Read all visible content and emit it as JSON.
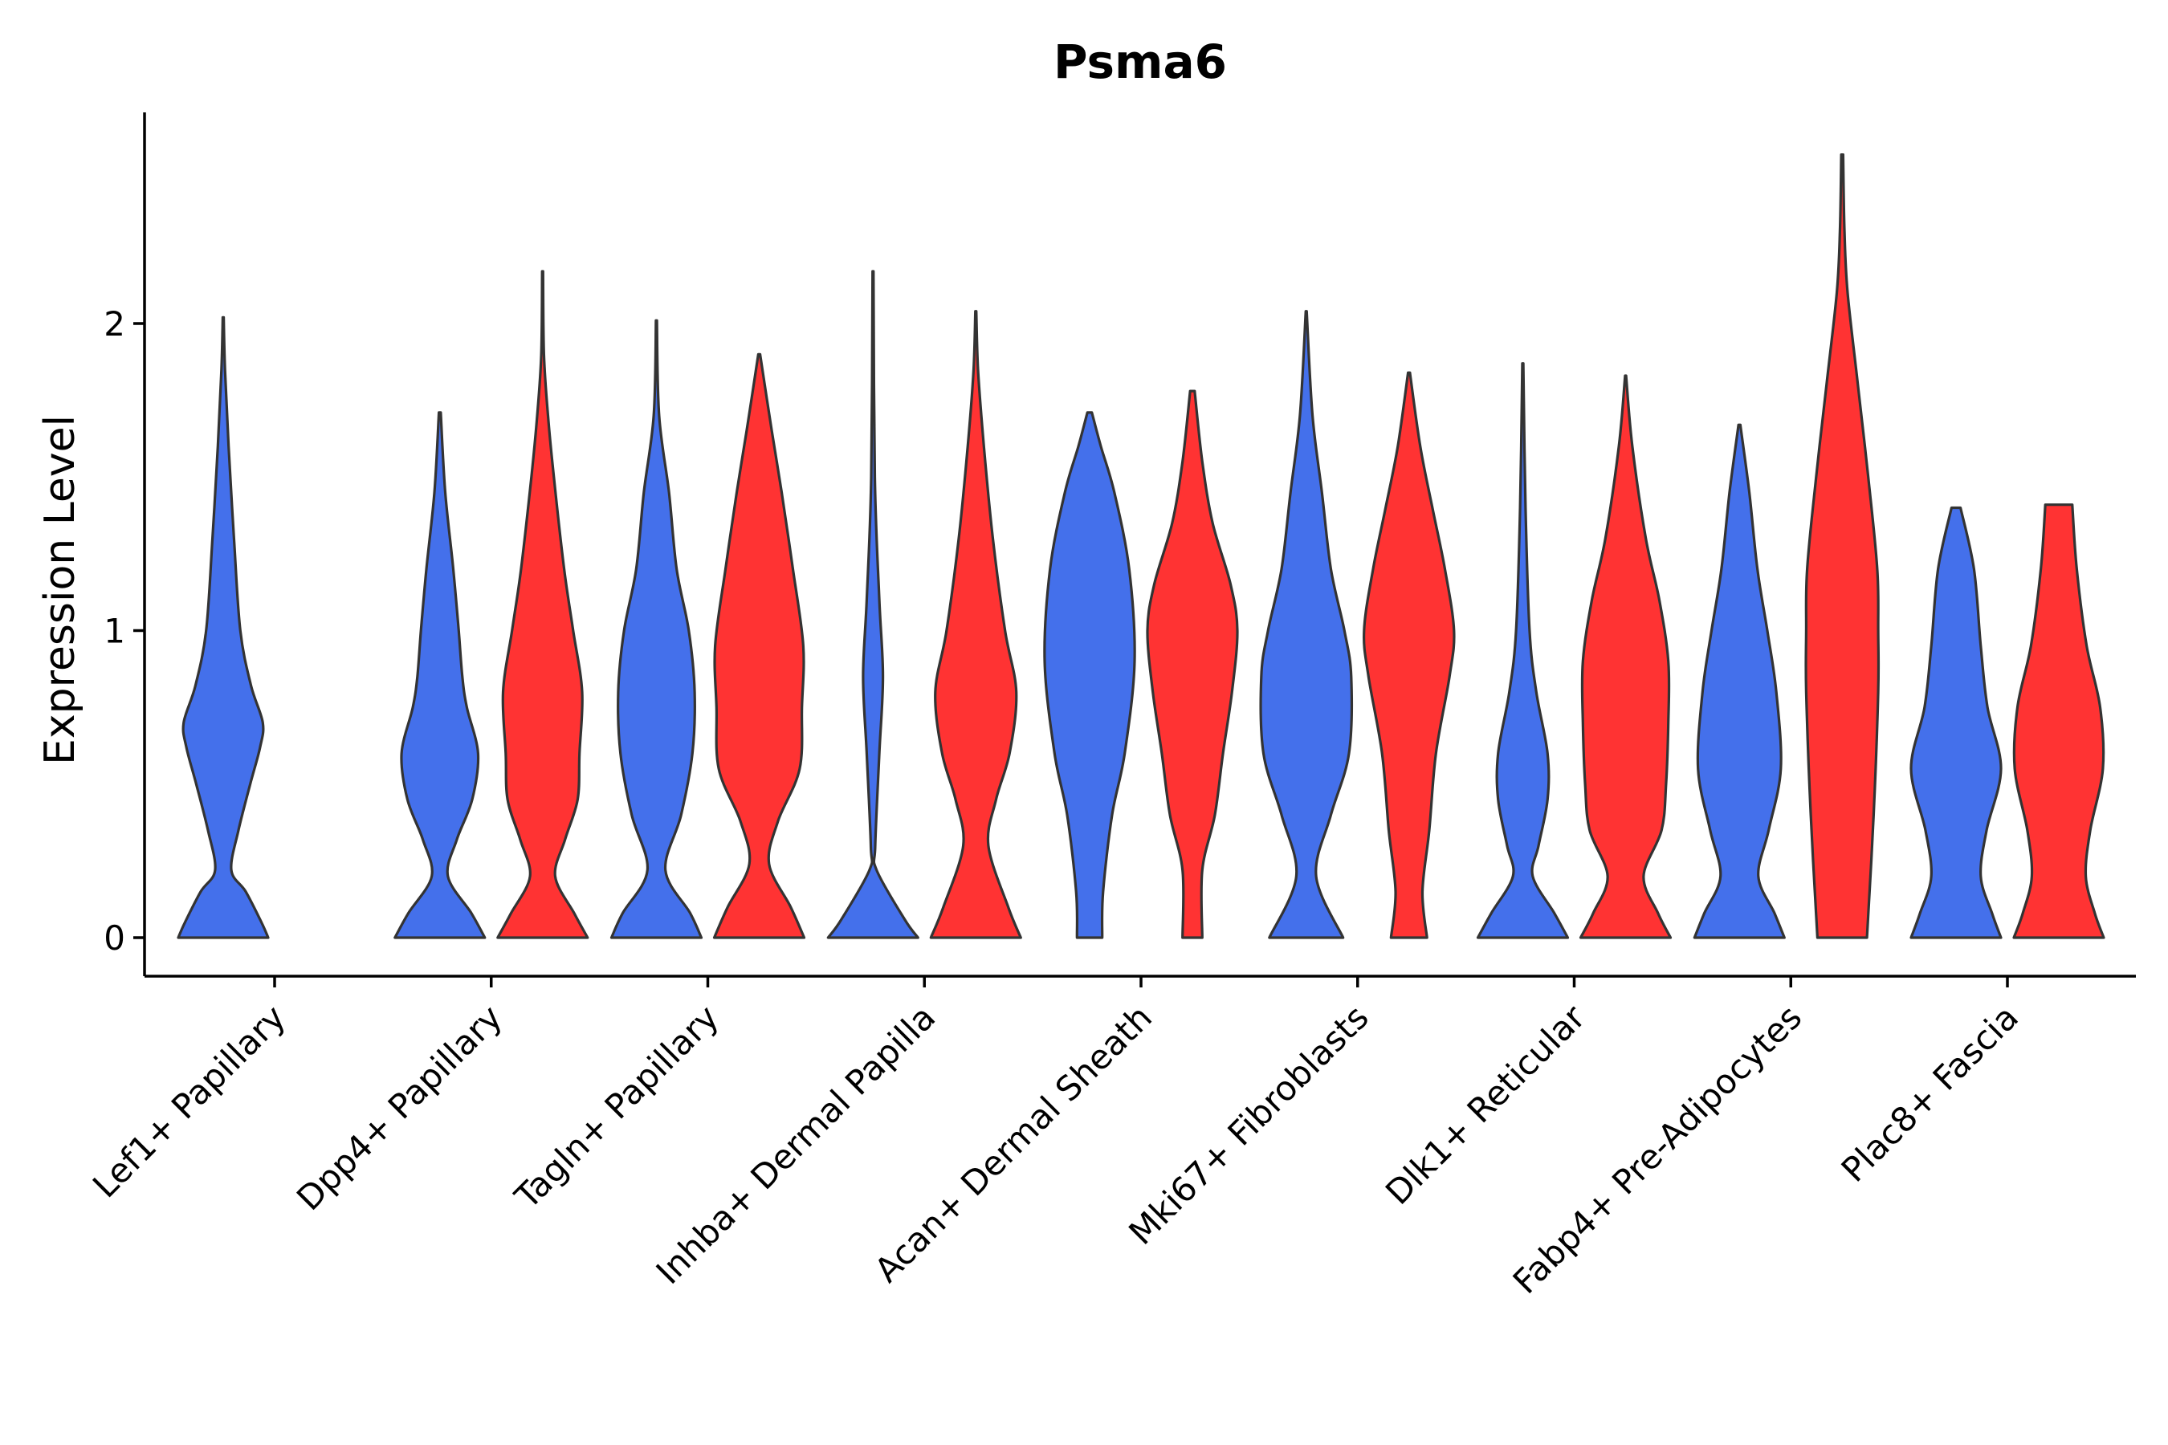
{
  "chart_data": {
    "type": "violin",
    "title": "Psma6",
    "xlabel": "",
    "ylabel": "Expression Level",
    "ylim": [
      -0.13,
      2.7
    ],
    "yticks": [
      0,
      1,
      2
    ],
    "colors": {
      "group_a": "#4470EB",
      "group_b": "#FF3333",
      "outline": "#333333"
    },
    "categories": [
      "Lef1+ Papillary",
      "Dpp4+ Papillary",
      "Tagln+ Papillary",
      "Inhba+ Dermal Papilla",
      "Acan+ Dermal Sheath",
      "Mki67+ Fibroblasts",
      "Dlk1+ Reticular",
      "Fabp4+ Pre-Adipocytes",
      "Plac8+ Fascia"
    ],
    "violins": [
      {
        "category": 0,
        "group": "a",
        "ymax": 2.02,
        "profile": [
          [
            0,
            1.0
          ],
          [
            0.05,
            0.85
          ],
          [
            0.15,
            0.5
          ],
          [
            0.22,
            0.18
          ],
          [
            0.35,
            0.34
          ],
          [
            0.5,
            0.6
          ],
          [
            0.62,
            0.82
          ],
          [
            0.7,
            0.88
          ],
          [
            0.82,
            0.62
          ],
          [
            1.0,
            0.38
          ],
          [
            1.3,
            0.24
          ],
          [
            1.6,
            0.12
          ],
          [
            1.85,
            0.04
          ],
          [
            2.02,
            0.01
          ]
        ]
      },
      {
        "category": 1,
        "group": "a",
        "ymax": 1.71,
        "profile": [
          [
            0,
            1.0
          ],
          [
            0.08,
            0.7
          ],
          [
            0.2,
            0.18
          ],
          [
            0.32,
            0.38
          ],
          [
            0.45,
            0.72
          ],
          [
            0.6,
            0.85
          ],
          [
            0.75,
            0.6
          ],
          [
            0.85,
            0.5
          ],
          [
            1.0,
            0.42
          ],
          [
            1.2,
            0.3
          ],
          [
            1.45,
            0.12
          ],
          [
            1.71,
            0.02
          ]
        ]
      },
      {
        "category": 1,
        "group": "b",
        "ymax": 2.17,
        "profile": [
          [
            0,
            1.0
          ],
          [
            0.08,
            0.7
          ],
          [
            0.2,
            0.28
          ],
          [
            0.32,
            0.5
          ],
          [
            0.45,
            0.78
          ],
          [
            0.6,
            0.82
          ],
          [
            0.8,
            0.88
          ],
          [
            1.0,
            0.68
          ],
          [
            1.2,
            0.48
          ],
          [
            1.5,
            0.25
          ],
          [
            1.7,
            0.12
          ],
          [
            1.9,
            0.03
          ],
          [
            2.17,
            0.01
          ]
        ]
      },
      {
        "category": 2,
        "group": "a",
        "ymax": 2.01,
        "profile": [
          [
            0,
            1.0
          ],
          [
            0.08,
            0.75
          ],
          [
            0.22,
            0.2
          ],
          [
            0.4,
            0.55
          ],
          [
            0.6,
            0.8
          ],
          [
            0.8,
            0.85
          ],
          [
            1.0,
            0.72
          ],
          [
            1.2,
            0.45
          ],
          [
            1.45,
            0.28
          ],
          [
            1.7,
            0.06
          ],
          [
            2.01,
            0.01
          ]
        ]
      },
      {
        "category": 2,
        "group": "b",
        "ymax": 1.9,
        "profile": [
          [
            0,
            1.0
          ],
          [
            0.1,
            0.7
          ],
          [
            0.24,
            0.22
          ],
          [
            0.38,
            0.42
          ],
          [
            0.55,
            0.9
          ],
          [
            0.75,
            0.95
          ],
          [
            0.95,
            0.98
          ],
          [
            1.2,
            0.75
          ],
          [
            1.45,
            0.5
          ],
          [
            1.65,
            0.28
          ],
          [
            1.9,
            0.02
          ]
        ]
      },
      {
        "category": 3,
        "group": "a",
        "ymax": 2.17,
        "profile": [
          [
            0,
            1.0
          ],
          [
            0.06,
            0.7
          ],
          [
            0.22,
            0.08
          ],
          [
            0.3,
            0.05
          ],
          [
            0.6,
            0.14
          ],
          [
            0.85,
            0.22
          ],
          [
            1.1,
            0.14
          ],
          [
            1.5,
            0.04
          ],
          [
            2.17,
            0.01
          ]
        ]
      },
      {
        "category": 3,
        "group": "b",
        "ymax": 2.04,
        "profile": [
          [
            0,
            1.0
          ],
          [
            0.1,
            0.72
          ],
          [
            0.3,
            0.28
          ],
          [
            0.45,
            0.45
          ],
          [
            0.6,
            0.75
          ],
          [
            0.8,
            0.9
          ],
          [
            1.0,
            0.65
          ],
          [
            1.3,
            0.38
          ],
          [
            1.6,
            0.18
          ],
          [
            1.85,
            0.05
          ],
          [
            2.04,
            0.01
          ]
        ]
      },
      {
        "category": 4,
        "group": "a",
        "ymax": 1.71,
        "profile": [
          [
            0,
            0.28
          ],
          [
            0.15,
            0.3
          ],
          [
            0.4,
            0.5
          ],
          [
            0.6,
            0.78
          ],
          [
            0.9,
            1.0
          ],
          [
            1.2,
            0.88
          ],
          [
            1.45,
            0.55
          ],
          [
            1.6,
            0.25
          ],
          [
            1.71,
            0.05
          ]
        ]
      },
      {
        "category": 4,
        "group": "b",
        "ymax": 1.78,
        "profile": [
          [
            0,
            0.22
          ],
          [
            0.22,
            0.22
          ],
          [
            0.4,
            0.5
          ],
          [
            0.6,
            0.68
          ],
          [
            0.8,
            0.88
          ],
          [
            1.0,
            1.0
          ],
          [
            1.15,
            0.85
          ],
          [
            1.35,
            0.45
          ],
          [
            1.55,
            0.22
          ],
          [
            1.78,
            0.05
          ]
        ]
      },
      {
        "category": 5,
        "group": "a",
        "ymax": 2.04,
        "profile": [
          [
            0,
            0.82
          ],
          [
            0.2,
            0.22
          ],
          [
            0.4,
            0.55
          ],
          [
            0.6,
            0.95
          ],
          [
            0.85,
            1.0
          ],
          [
            1.0,
            0.85
          ],
          [
            1.2,
            0.55
          ],
          [
            1.45,
            0.35
          ],
          [
            1.7,
            0.14
          ],
          [
            2.04,
            0.01
          ]
        ]
      },
      {
        "category": 5,
        "group": "b",
        "ymax": 1.84,
        "profile": [
          [
            0,
            0.4
          ],
          [
            0.15,
            0.3
          ],
          [
            0.35,
            0.45
          ],
          [
            0.6,
            0.6
          ],
          [
            0.85,
            0.9
          ],
          [
            1.0,
            1.0
          ],
          [
            1.2,
            0.8
          ],
          [
            1.4,
            0.52
          ],
          [
            1.6,
            0.25
          ],
          [
            1.84,
            0.02
          ]
        ]
      },
      {
        "category": 6,
        "group": "a",
        "ymax": 1.87,
        "profile": [
          [
            0,
            1.0
          ],
          [
            0.08,
            0.7
          ],
          [
            0.2,
            0.22
          ],
          [
            0.3,
            0.35
          ],
          [
            0.45,
            0.55
          ],
          [
            0.6,
            0.55
          ],
          [
            0.8,
            0.3
          ],
          [
            1.0,
            0.15
          ],
          [
            1.4,
            0.06
          ],
          [
            1.87,
            0.01
          ]
        ]
      },
      {
        "category": 6,
        "group": "b",
        "ymax": 1.83,
        "profile": [
          [
            0,
            1.0
          ],
          [
            0.08,
            0.72
          ],
          [
            0.2,
            0.4
          ],
          [
            0.35,
            0.8
          ],
          [
            0.5,
            0.9
          ],
          [
            0.7,
            0.95
          ],
          [
            0.9,
            0.95
          ],
          [
            1.1,
            0.75
          ],
          [
            1.3,
            0.45
          ],
          [
            1.6,
            0.15
          ],
          [
            1.83,
            0.01
          ]
        ]
      },
      {
        "category": 7,
        "group": "a",
        "ymax": 1.67,
        "profile": [
          [
            0,
            1.0
          ],
          [
            0.08,
            0.78
          ],
          [
            0.2,
            0.42
          ],
          [
            0.35,
            0.65
          ],
          [
            0.55,
            0.92
          ],
          [
            0.8,
            0.82
          ],
          [
            1.0,
            0.62
          ],
          [
            1.2,
            0.4
          ],
          [
            1.45,
            0.22
          ],
          [
            1.67,
            0.02
          ]
        ]
      },
      {
        "category": 7,
        "group": "b",
        "ymax": 2.55,
        "profile": [
          [
            0,
            0.55
          ],
          [
            0.4,
            0.7
          ],
          [
            0.8,
            0.8
          ],
          [
            1.0,
            0.8
          ],
          [
            1.2,
            0.78
          ],
          [
            1.5,
            0.58
          ],
          [
            1.8,
            0.35
          ],
          [
            2.1,
            0.12
          ],
          [
            2.3,
            0.05
          ],
          [
            2.55,
            0.02
          ]
        ]
      },
      {
        "category": 8,
        "group": "a",
        "ymax": 1.4,
        "profile": [
          [
            0,
            1.0
          ],
          [
            0.08,
            0.8
          ],
          [
            0.2,
            0.55
          ],
          [
            0.35,
            0.68
          ],
          [
            0.55,
            1.0
          ],
          [
            0.75,
            0.7
          ],
          [
            0.95,
            0.55
          ],
          [
            1.2,
            0.4
          ],
          [
            1.4,
            0.1
          ]
        ]
      },
      {
        "category": 8,
        "group": "b",
        "ymax": 1.41,
        "profile": [
          [
            0,
            1.0
          ],
          [
            0.08,
            0.8
          ],
          [
            0.2,
            0.6
          ],
          [
            0.35,
            0.7
          ],
          [
            0.55,
            0.98
          ],
          [
            0.75,
            0.92
          ],
          [
            0.95,
            0.62
          ],
          [
            1.2,
            0.4
          ],
          [
            1.41,
            0.3
          ]
        ]
      }
    ]
  }
}
